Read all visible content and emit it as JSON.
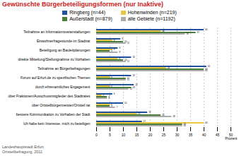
{
  "chart_data": {
    "type": "bar",
    "orientation": "horizontal",
    "title": "Gewünschte Bürgerbeteiligungsformen (nur Inaktive)",
    "categories": [
      "Teilnahme an Informationsveranstaltungen",
      "Einwohnerfragestunde im Stadtrat",
      "Beteiligung an Bauleitplanungen",
      "direkte Mitteilung/Stellungnahme zu Vorhaben",
      "Teilnahme an Bürgerbefragungen",
      "Forum auf Erfurt.de zu spezifischen Themen",
      "durch ehrenamtliches Engagement",
      "über Fraktionen/Ausschussmitglieder des Stadtrates",
      "über Ortsteilbürgermeister/Ortsteil rat",
      "bessere Kommunikation zu Vorhaben der Stadt",
      "Ich habe kein Interesse, mich zu beteiligen"
    ],
    "series": [
      {
        "name": "Ringberg (n=44)",
        "color": "#2050A0",
        "values": [
          40,
          9,
          8,
          13,
          41,
          13,
          14,
          6,
          10,
          19,
          17
        ]
      },
      {
        "name": "Hohenwinden (n=219)",
        "color": "#E8C840",
        "values": [
          24,
          6,
          6,
          8,
          26,
          5,
          5,
          2,
          5,
          15,
          40
        ]
      },
      {
        "name": "Außerstadt (n=879)",
        "color": "#4B7E3A",
        "values": [
          37,
          10,
          5,
          10,
          40,
          11,
          13,
          4,
          5,
          24,
          32
        ]
      },
      {
        "name": "alle Gebiete (n=1192)",
        "color": "#ABABAB",
        "values": [
          33,
          11,
          8,
          11,
          40,
          11,
          12,
          4,
          7,
          28,
          32
        ]
      }
    ],
    "xlabel": "Prozent",
    "xlim": [
      0,
      50
    ],
    "xticks": [
      0,
      5,
      10,
      15,
      20,
      25,
      30,
      35,
      40,
      45,
      50
    ],
    "grid": true,
    "data_labels": true,
    "legend": "top",
    "footnote": "Landeshauptstadt Erfurt\nOrtsteilbefragung, 2011"
  }
}
